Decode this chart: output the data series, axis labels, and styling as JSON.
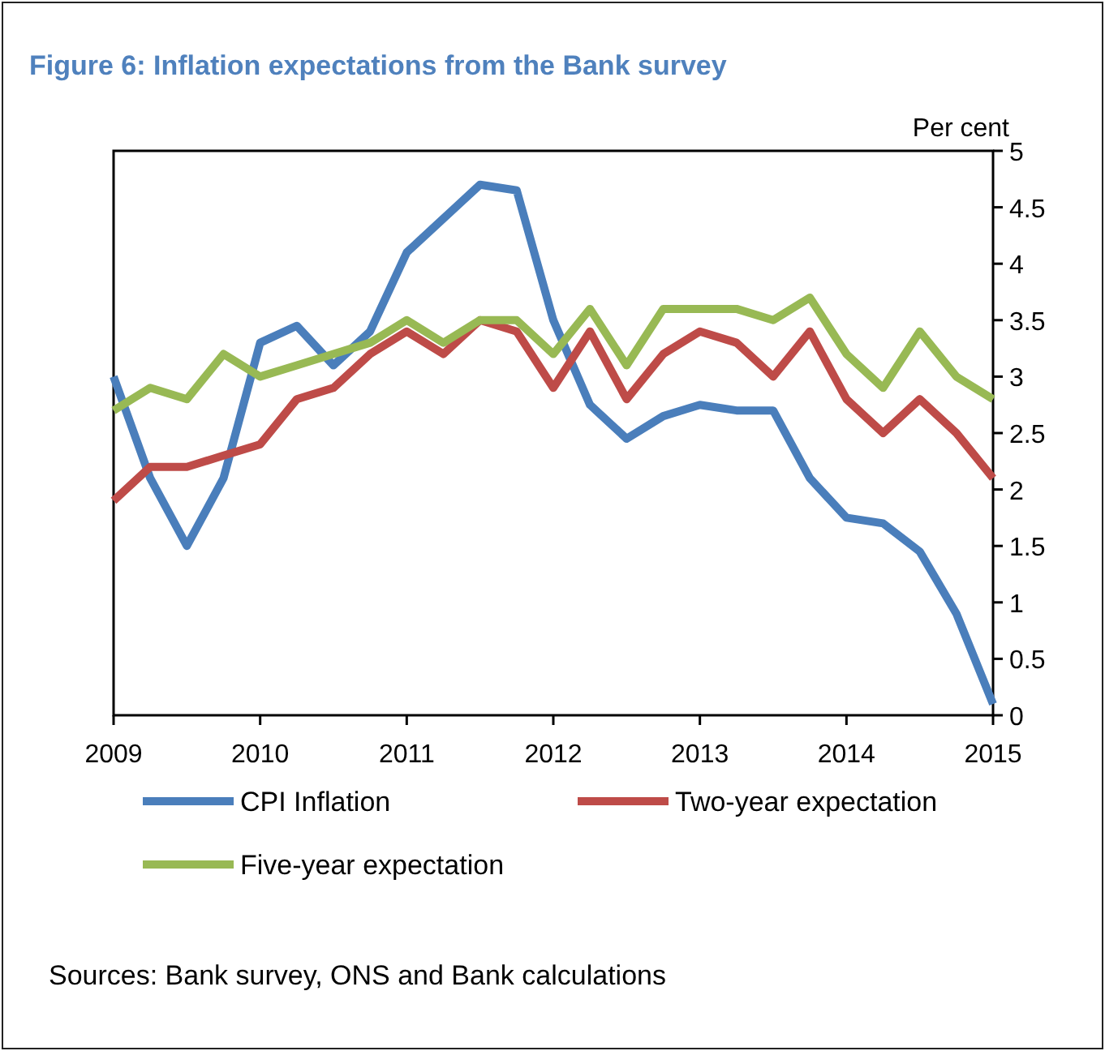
{
  "chart_data": {
    "type": "line",
    "title": "Figure 6: Inflation expectations from the Bank survey",
    "ylabel": "Per cent",
    "x": [
      2009,
      2009.25,
      2009.5,
      2009.75,
      2010,
      2010.25,
      2010.5,
      2010.75,
      2011,
      2011.25,
      2011.5,
      2011.75,
      2012,
      2012.25,
      2012.5,
      2012.75,
      2013,
      2013.25,
      2013.5,
      2013.75,
      2014,
      2014.25,
      2014.5,
      2014.75,
      2015
    ],
    "series": [
      {
        "name": "CPI Inflation",
        "color": "#4a7ebb",
        "values": [
          3.0,
          2.1,
          1.5,
          2.1,
          3.3,
          3.45,
          3.1,
          3.4,
          4.1,
          4.4,
          4.7,
          4.65,
          3.5,
          2.75,
          2.45,
          2.65,
          2.75,
          2.7,
          2.7,
          2.1,
          1.75,
          1.7,
          1.45,
          0.9,
          0.1
        ]
      },
      {
        "name": "Two-year expectation",
        "color": "#be4b48",
        "values": [
          1.9,
          2.2,
          2.2,
          2.3,
          2.4,
          2.8,
          2.9,
          3.2,
          3.4,
          3.2,
          3.5,
          3.4,
          2.9,
          3.4,
          2.8,
          3.2,
          3.4,
          3.3,
          3.0,
          3.4,
          2.8,
          2.5,
          2.8,
          2.5,
          2.1
        ]
      },
      {
        "name": "Five-year expectation",
        "color": "#98b954",
        "values": [
          2.7,
          2.9,
          2.8,
          3.2,
          3.0,
          3.1,
          3.2,
          3.3,
          3.5,
          3.3,
          3.5,
          3.5,
          3.2,
          3.6,
          3.1,
          3.6,
          3.6,
          3.6,
          3.5,
          3.7,
          3.2,
          2.9,
          3.4,
          3.0,
          2.8
        ]
      }
    ],
    "xlim": [
      2009,
      2015
    ],
    "xticks": [
      2009,
      2010,
      2011,
      2012,
      2013,
      2014,
      2015
    ],
    "ylim": [
      0,
      5
    ],
    "yticks": [
      0,
      0.5,
      1,
      1.5,
      2,
      2.5,
      3,
      3.5,
      4,
      4.5,
      5
    ],
    "grid": false,
    "legend": "bottom",
    "marker": "none",
    "line_style": "solid",
    "annotations": [
      "Sources: Bank survey, ONS and Bank calculations"
    ]
  }
}
